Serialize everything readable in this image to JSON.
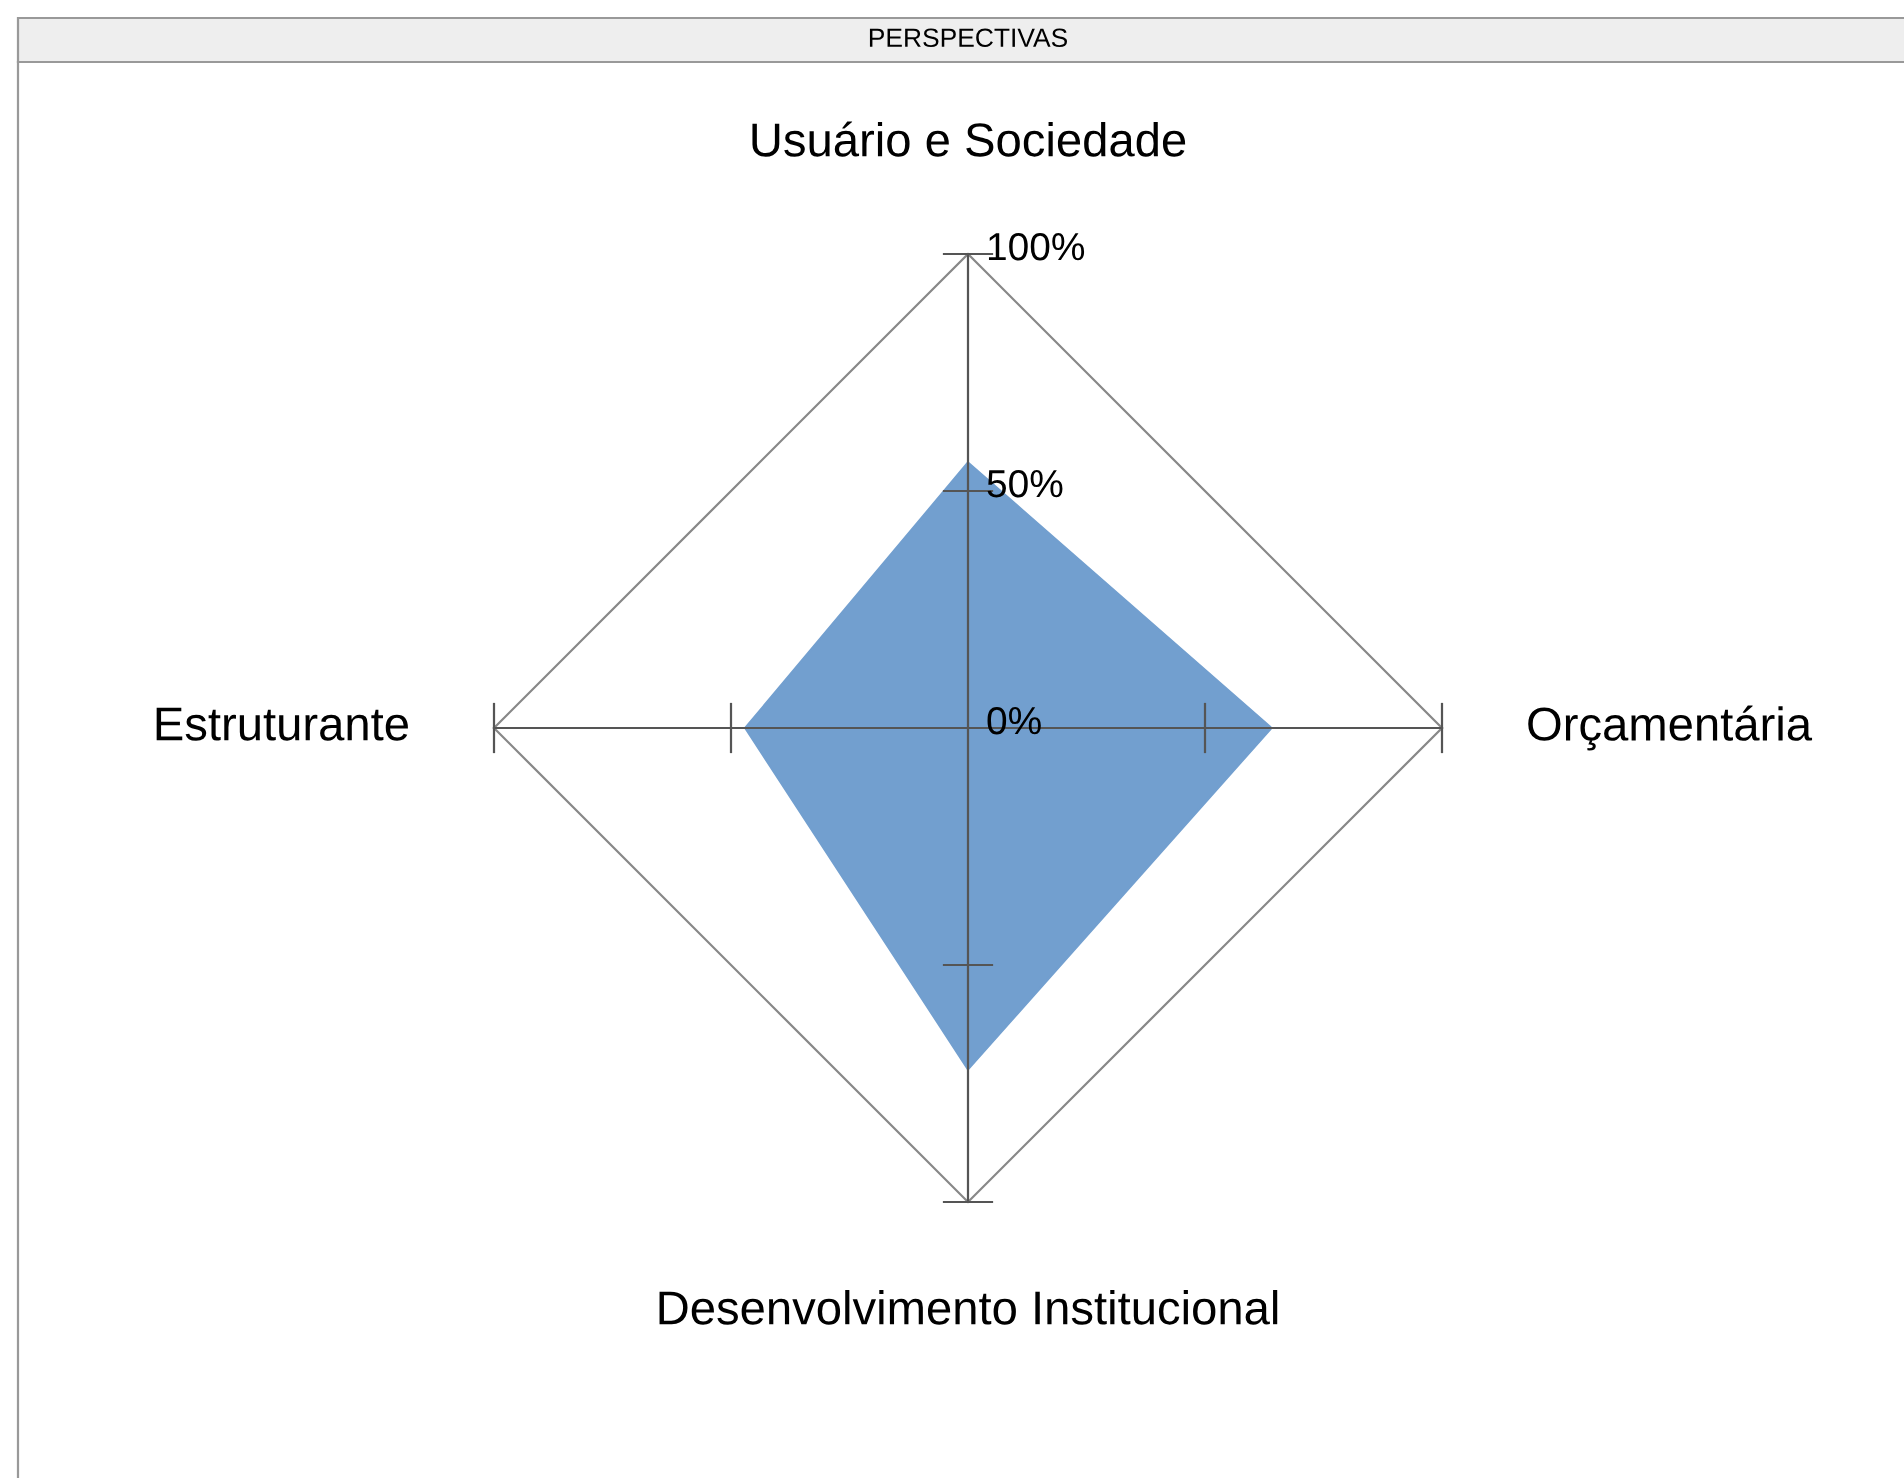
{
  "chart_data": {
    "type": "radar",
    "title": "PERSPECTIVAS",
    "categories": [
      "Usuário e Sociedade",
      "Orçamentária",
      "Desenvolvimento Institucional",
      "Estruturante"
    ],
    "series": [
      {
        "color": "#729fcf",
        "values": [
          56,
          64,
          72,
          47
        ]
      }
    ],
    "ylim": [
      0,
      100
    ],
    "yticks": [
      {
        "value": 0,
        "label": "0%"
      },
      {
        "value": 50,
        "label": "50%"
      },
      {
        "value": 100,
        "label": "100%"
      }
    ],
    "grid": true,
    "marker": "none"
  }
}
